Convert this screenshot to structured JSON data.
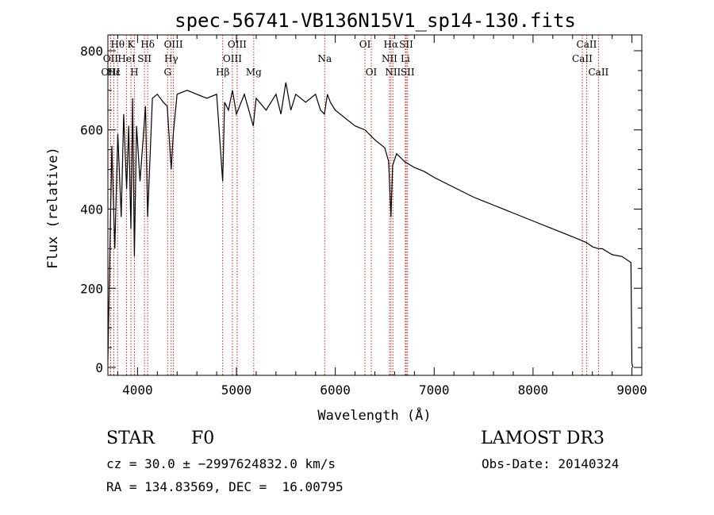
{
  "chart_data": {
    "type": "line",
    "title": "spec-56741-VB136N15V1_sp14-130.fits",
    "xlabel": "Wavelength (Å)",
    "ylabel": "Flux (relative)",
    "xlim": [
      3700,
      9100
    ],
    "ylim": [
      -20,
      840
    ],
    "xticks": [
      4000,
      5000,
      6000,
      7000,
      8000,
      9000
    ],
    "yticks": [
      0,
      200,
      400,
      600,
      800
    ],
    "grid": false,
    "series": [
      {
        "name": "spectrum",
        "x": [
          3700,
          3740,
          3770,
          3800,
          3835,
          3860,
          3889,
          3910,
          3933,
          3950,
          3968,
          3990,
          4025,
          4080,
          4102,
          4150,
          4200,
          4260,
          4300,
          4340,
          4361,
          4400,
          4500,
          4600,
          4700,
          4800,
          4861,
          4880,
          4920,
          4960,
          5000,
          5080,
          5170,
          5200,
          5300,
          5400,
          5450,
          5500,
          5550,
          5600,
          5700,
          5800,
          5850,
          5890,
          5920,
          5950,
          6000,
          6100,
          6200,
          6300,
          6400,
          6500,
          6540,
          6563,
          6580,
          6620,
          6700,
          6800,
          6900,
          7000,
          7200,
          7400,
          7600,
          7800,
          8000,
          8200,
          8400,
          8498,
          8542,
          8600,
          8662,
          8700,
          8800,
          8900,
          8990,
          9000,
          9010
        ],
        "values": [
          20,
          560,
          300,
          590,
          380,
          640,
          450,
          610,
          350,
          680,
          280,
          610,
          470,
          660,
          380,
          680,
          690,
          670,
          660,
          500,
          590,
          690,
          700,
          690,
          680,
          690,
          470,
          670,
          650,
          700,
          640,
          690,
          610,
          680,
          650,
          690,
          640,
          720,
          650,
          690,
          670,
          690,
          650,
          640,
          690,
          670,
          650,
          630,
          610,
          600,
          575,
          555,
          520,
          380,
          510,
          540,
          520,
          505,
          495,
          480,
          455,
          430,
          410,
          390,
          370,
          350,
          330,
          320,
          315,
          305,
          300,
          300,
          285,
          280,
          265,
          10,
          0
        ]
      }
    ],
    "spectral_lines": [
      {
        "label": "Hθ",
        "wl": 3798,
        "row": 1
      },
      {
        "label": "OII",
        "wl": 3727,
        "row": 2
      },
      {
        "label": "OIII",
        "wl": 3727,
        "row": 3
      },
      {
        "label": "Hε",
        "wl": 3760,
        "row": 3
      },
      {
        "label": "HeI",
        "wl": 3889,
        "row": 2
      },
      {
        "label": "K",
        "wl": 3933,
        "row": 1
      },
      {
        "label": "H",
        "wl": 3968,
        "row": 3
      },
      {
        "label": "SII",
        "wl": 4070,
        "row": 2
      },
      {
        "label": "Hδ",
        "wl": 4102,
        "row": 1
      },
      {
        "label": "OIII",
        "wl": 4363,
        "row": 1
      },
      {
        "label": "Hγ",
        "wl": 4340,
        "row": 2
      },
      {
        "label": "G",
        "wl": 4304,
        "row": 3
      },
      {
        "label": "Hβ",
        "wl": 4861,
        "row": 3
      },
      {
        "label": "OIII",
        "wl": 5007,
        "row": 1
      },
      {
        "label": "OIII",
        "wl": 4959,
        "row": 2
      },
      {
        "label": "Mg",
        "wl": 5175,
        "row": 3
      },
      {
        "label": "Na",
        "wl": 5893,
        "row": 2
      },
      {
        "label": "OI",
        "wl": 6300,
        "row": 1
      },
      {
        "label": "OI",
        "wl": 6364,
        "row": 3
      },
      {
        "label": "Hα",
        "wl": 6563,
        "row": 1
      },
      {
        "label": "NII",
        "wl": 6548,
        "row": 2
      },
      {
        "label": "NII",
        "wl": 6583,
        "row": 3
      },
      {
        "label": "SII",
        "wl": 6717,
        "row": 1
      },
      {
        "label": "Li",
        "wl": 6708,
        "row": 2
      },
      {
        "label": "SII",
        "wl": 6731,
        "row": 3
      },
      {
        "label": "CaII",
        "wl": 8542,
        "row": 1
      },
      {
        "label": "CaII",
        "wl": 8498,
        "row": 2
      },
      {
        "label": "CaII",
        "wl": 8662,
        "row": 3
      }
    ]
  },
  "info": {
    "object_class": "STAR",
    "subclass": "F0",
    "survey": "LAMOST DR3",
    "redshift": "cz = 30.0 ± −2997624832.0 km/s",
    "obs_date": "Obs-Date: 20140324",
    "coordinates": "RA = 134.83569, DEC =  16.00795"
  }
}
